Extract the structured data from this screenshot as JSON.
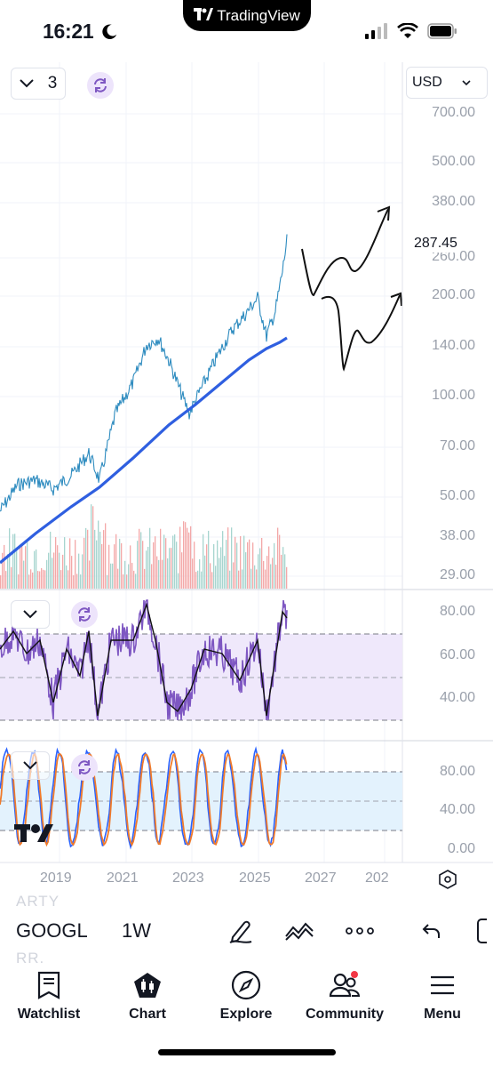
{
  "status_bar": {
    "time": "16:21",
    "app_name": "TradingView"
  },
  "chart": {
    "pane_collapse_count": "3",
    "currency": "USD",
    "last_price": "287.45",
    "price_axis_labels": [
      "700.00",
      "500.00",
      "380.00",
      "260.00",
      "200.00",
      "140.00",
      "100.00",
      "70.00",
      "50.00",
      "38.00",
      "29.00"
    ],
    "osc1_axis_labels": [
      "80.00",
      "60.00",
      "40.00"
    ],
    "osc2_axis_labels": [
      "80.00",
      "40.00",
      "0.00"
    ],
    "year_labels": [
      "2019",
      "2021",
      "2023",
      "2025",
      "2027",
      "202"
    ],
    "colors": {
      "price_line": "#2d8bbf",
      "moving_average": "#2f5fe0",
      "volume_up": "#a7d5cf",
      "volume_down": "#f3a8a8",
      "rsi": "#7e57c2",
      "rsi_band": "#efe8fb",
      "stoch_k": "#2962ff",
      "stoch_d": "#f07a2a",
      "stoch_band": "#e3f2fd"
    }
  },
  "bottom_toolbar": {
    "ghost_top": "ARTY",
    "ghost_bottom": "RR.",
    "symbol": "GOOGL",
    "interval": "1W",
    "tools": [
      "pen-icon",
      "indicators-icon",
      "more-icon",
      "undo-icon"
    ]
  },
  "tab_bar": {
    "tabs": [
      {
        "label": "Watchlist",
        "icon": "watchlist-icon"
      },
      {
        "label": "Chart",
        "icon": "chart-icon"
      },
      {
        "label": "Explore",
        "icon": "compass-icon"
      },
      {
        "label": "Community",
        "icon": "community-icon"
      },
      {
        "label": "Menu",
        "icon": "menu-icon"
      }
    ]
  }
}
